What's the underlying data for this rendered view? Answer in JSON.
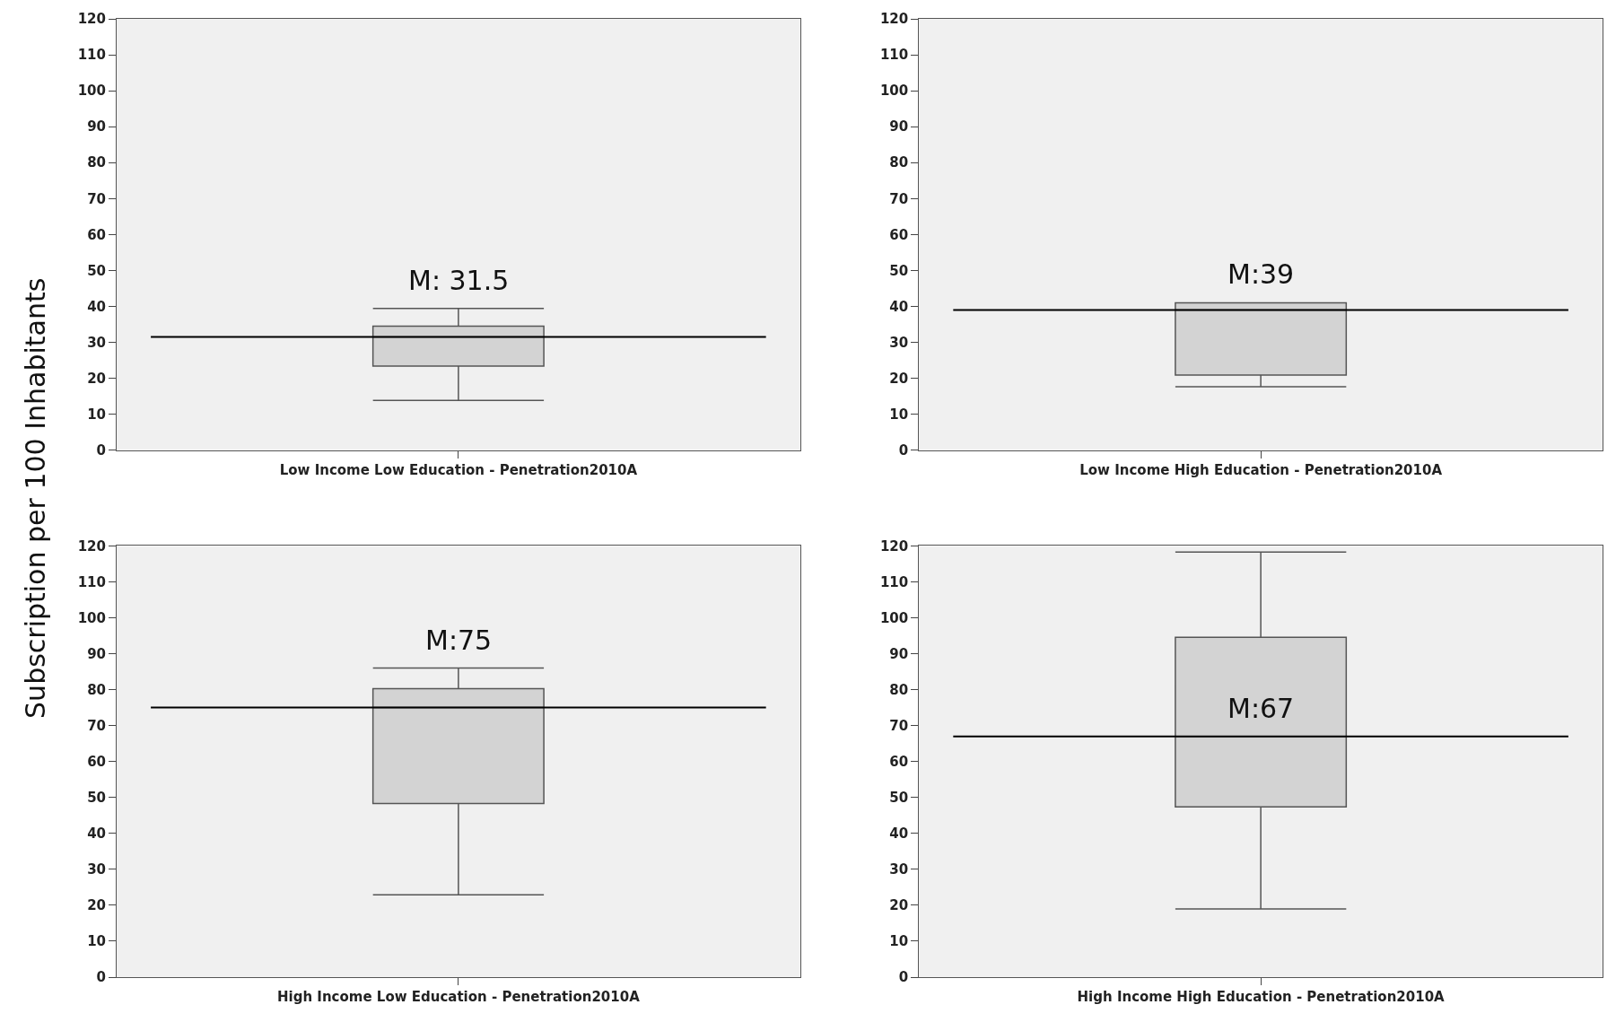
{
  "chart_data": [
    {
      "type": "box",
      "ylabel": "Subscription per 100 Inhabitants",
      "categories": [
        "Low Income Low Education - Penetration2010A"
      ],
      "boxes": [
        {
          "low": 13.8,
          "q1": 23.4,
          "median": 31.5,
          "q3": 34.5,
          "high": 39.4
        }
      ],
      "color": "#d3d3d3",
      "ylim": [
        0,
        120
      ],
      "yticks": [
        0,
        10,
        20,
        30,
        40,
        50,
        60,
        70,
        80,
        90,
        100,
        110,
        120
      ],
      "grid": false,
      "ref_lines": [
        {
          "axis": "y",
          "value": 31.5,
          "color": "#000000",
          "label": "M: 31.5"
        }
      ]
    },
    {
      "type": "box",
      "categories": [
        "Low Income High Education - Penetration2010A"
      ],
      "boxes": [
        {
          "low": 17.6,
          "q1": 20.9,
          "median": 39,
          "q3": 41,
          "high": 41
        }
      ],
      "color": "#d3d3d3",
      "ylim": [
        0,
        120
      ],
      "yticks": [
        0,
        10,
        20,
        30,
        40,
        50,
        60,
        70,
        80,
        90,
        100,
        110,
        120
      ],
      "grid": false,
      "ref_lines": [
        {
          "axis": "y",
          "value": 39,
          "color": "#000000",
          "label": "M:39"
        }
      ]
    },
    {
      "type": "box",
      "categories": [
        "High Income Low Education - Penetration2010A"
      ],
      "boxes": [
        {
          "low": 22.9,
          "q1": 48.3,
          "median": 75,
          "q3": 80.3,
          "high": 86
        }
      ],
      "color": "#d3d3d3",
      "ylim": [
        0,
        120
      ],
      "yticks": [
        0,
        10,
        20,
        30,
        40,
        50,
        60,
        70,
        80,
        90,
        100,
        110,
        120
      ],
      "grid": false,
      "ref_lines": [
        {
          "axis": "y",
          "value": 75,
          "color": "#000000",
          "label": "M:75"
        }
      ]
    },
    {
      "type": "box",
      "categories": [
        "High Income High Education - Penetration2010A"
      ],
      "boxes": [
        {
          "low": 19,
          "q1": 47.4,
          "median": 67,
          "q3": 94.6,
          "high": 118.3
        }
      ],
      "color": "#d3d3d3",
      "ylim": [
        0,
        120
      ],
      "yticks": [
        0,
        10,
        20,
        30,
        40,
        50,
        60,
        70,
        80,
        90,
        100,
        110,
        120
      ],
      "grid": false,
      "ref_lines": [
        {
          "axis": "y",
          "value": 67,
          "color": "#000000",
          "label": "M:67"
        }
      ]
    }
  ]
}
